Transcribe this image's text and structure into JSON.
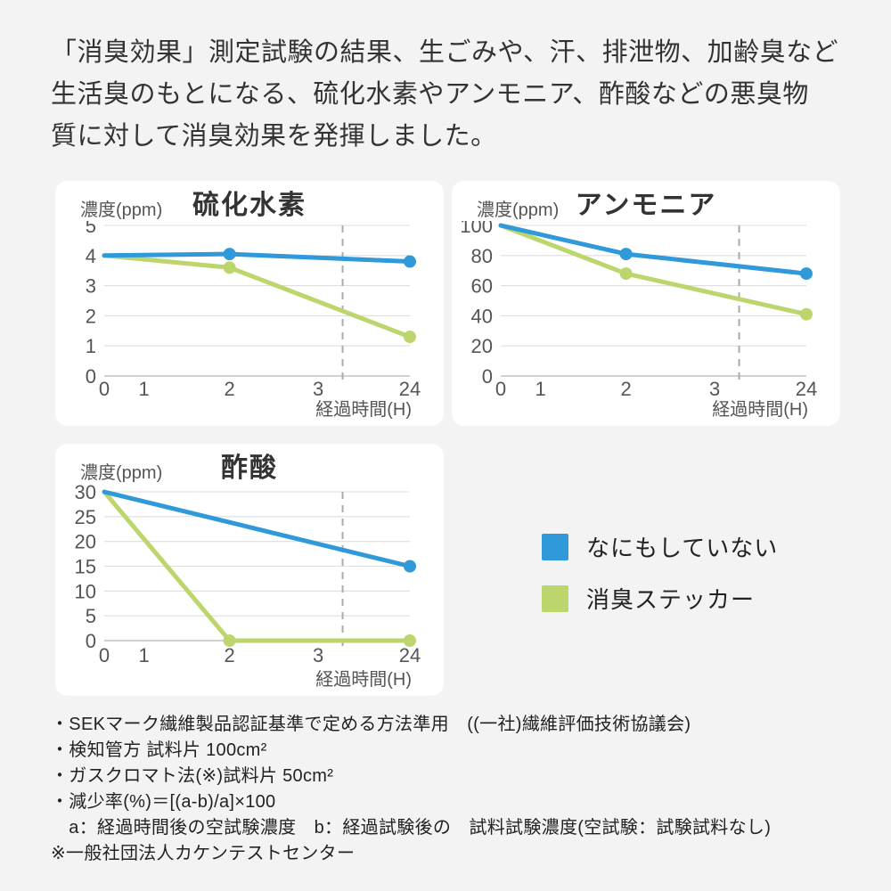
{
  "page": {
    "background": "#f3f3f4"
  },
  "header": {
    "lines": [
      "「消臭効果」測定試験の結果、生ごみや、汗、排泄物、加齢臭など",
      "生活臭のもとになる、硫化水素やアンモニア、酢酸などの悪臭物",
      "質に対して消臭効果を発揮しました。"
    ]
  },
  "colors": {
    "blue": "#2f99d9",
    "green": "#bcd66d",
    "grid": "#dedede",
    "axis": "#c2c2c2",
    "dashed": "#ababab",
    "tick_text": "#555555"
  },
  "chart_data": [
    {
      "type": "line",
      "title": "硫化水素",
      "ylabel": "濃度(ppm)",
      "xlabel": "経過時間(H)",
      "x_tick_labels": [
        "0",
        "1",
        "2",
        "3",
        "24"
      ],
      "x_hours": [
        0,
        2,
        24
      ],
      "ylim": [
        0,
        5
      ],
      "y_ticks": [
        5,
        4,
        3,
        2,
        1,
        0
      ],
      "grid": true,
      "series": [
        {
          "name": "なにもしていない",
          "color": "blue",
          "values": [
            4.0,
            4.05,
            3.8
          ],
          "markers": [
            false,
            true,
            true
          ]
        },
        {
          "name": "消臭ステッカー",
          "color": "green",
          "values": [
            4.0,
            3.6,
            1.3
          ],
          "markers": [
            false,
            true,
            true
          ]
        }
      ]
    },
    {
      "type": "line",
      "title": "アンモニア",
      "ylabel": "濃度(ppm)",
      "xlabel": "経過時間(H)",
      "x_tick_labels": [
        "0",
        "1",
        "2",
        "3",
        "24"
      ],
      "x_hours": [
        0,
        2,
        24
      ],
      "ylim": [
        0,
        100
      ],
      "y_ticks": [
        100,
        80,
        60,
        40,
        20,
        0
      ],
      "grid": true,
      "series": [
        {
          "name": "なにもしていない",
          "color": "blue",
          "values": [
            100,
            81,
            68
          ],
          "markers": [
            false,
            true,
            true
          ]
        },
        {
          "name": "消臭ステッカー",
          "color": "green",
          "values": [
            100,
            68,
            41
          ],
          "markers": [
            false,
            true,
            true
          ]
        }
      ]
    },
    {
      "type": "line",
      "title": "酢酸",
      "ylabel": "濃度(ppm)",
      "xlabel": "経過時間(H)",
      "x_tick_labels": [
        "0",
        "1",
        "2",
        "3",
        "24"
      ],
      "x_hours": [
        0,
        2,
        24
      ],
      "ylim": [
        0,
        30
      ],
      "y_ticks": [
        30,
        25,
        20,
        15,
        10,
        5,
        0
      ],
      "grid": true,
      "series": [
        {
          "name": "なにもしていない",
          "color": "blue",
          "values": [
            30,
            null,
            15
          ],
          "markers": [
            false,
            false,
            true
          ]
        },
        {
          "name": "消臭ステッカー",
          "color": "green",
          "values": [
            30,
            0,
            0
          ],
          "markers": [
            false,
            true,
            true
          ]
        }
      ]
    }
  ],
  "legend": {
    "items": [
      {
        "label": "なにもしていない",
        "color": "blue"
      },
      {
        "label": "消臭ステッカー",
        "color": "green"
      }
    ]
  },
  "footnotes": {
    "lines": [
      "・SEKマーク繊維製品認証基準で定める方法準用　((一社)繊維評価技術協議会)",
      "・検知管方 試料片 100cm²",
      "・ガスクロマト法(※)試料片 50cm²",
      "・減少率(%)＝[(a-b)/a]×100",
      "　a：経過時間後の空試験濃度　b：経過試験後の　試料試験濃度(空試験：試験試料なし)"
    ],
    "source": "※一般社団法人カケンテストセンター"
  }
}
